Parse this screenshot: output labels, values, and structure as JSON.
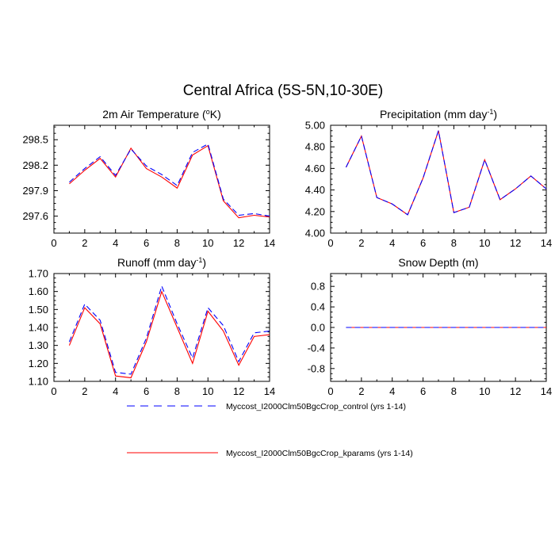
{
  "title": "Central Africa (5S-5N,10-30E)",
  "colors": {
    "control": "#0000ff",
    "kparams": "#ff0000",
    "axis": "#000000"
  },
  "legend": [
    {
      "label": "Myccost_I2000Clm50BgcCrop_control (yrs 1-14)",
      "color": "#0000ff",
      "dash": "dashed"
    },
    {
      "label": "Myccost_I2000Clm50BgcCrop_kparams (yrs 1-14)",
      "color": "#ff0000",
      "dash": "solid"
    }
  ],
  "chart_data": [
    {
      "type": "line",
      "title": "2m Air Temperature (",
      "title_sup": "o",
      "title_tail": "K)",
      "xlim": [
        0,
        14
      ],
      "ylim": [
        297.4,
        298.67
      ],
      "xticks": [
        0,
        2,
        4,
        6,
        8,
        10,
        12,
        14
      ],
      "yticks": [
        297.6,
        297.9,
        298.2,
        298.5
      ],
      "ytick_labels": [
        "297.6",
        "297.9",
        "298.2",
        "298.5"
      ],
      "x": [
        1,
        2,
        3,
        4,
        5,
        6,
        7,
        8,
        9,
        10,
        11,
        12,
        13,
        14
      ],
      "series": [
        {
          "name": "Myccost_I2000Clm50BgcCrop_control (yrs 1-14)",
          "values": [
            298.0,
            298.16,
            298.3,
            298.08,
            298.39,
            298.19,
            298.09,
            297.96,
            298.35,
            298.45,
            297.8,
            297.61,
            297.63,
            297.6
          ]
        },
        {
          "name": "Myccost_I2000Clm50BgcCrop_kparams (yrs 1-14)",
          "values": [
            297.98,
            298.14,
            298.28,
            298.06,
            298.4,
            298.16,
            298.06,
            297.93,
            298.32,
            298.43,
            297.78,
            297.58,
            297.61,
            297.59
          ]
        }
      ]
    },
    {
      "type": "line",
      "title": "Precipitation (mm day",
      "title_sup": "-1",
      "title_tail": ")",
      "xlim": [
        0,
        14
      ],
      "ylim": [
        4.0,
        5.0
      ],
      "xticks": [
        0,
        2,
        4,
        6,
        8,
        10,
        12,
        14
      ],
      "yticks": [
        4.0,
        4.2,
        4.4,
        4.6,
        4.8,
        5.0
      ],
      "ytick_labels": [
        "4.00",
        "4.20",
        "4.40",
        "4.60",
        "4.80",
        "5.00"
      ],
      "x": [
        1,
        2,
        3,
        4,
        5,
        6,
        7,
        8,
        9,
        10,
        11,
        12,
        13,
        14
      ],
      "series": [
        {
          "name": "Myccost_I2000Clm50BgcCrop_control (yrs 1-14)",
          "values": [
            4.61,
            4.9,
            4.33,
            4.27,
            4.17,
            4.51,
            4.95,
            4.19,
            4.24,
            4.68,
            4.31,
            4.41,
            4.53,
            4.41
          ]
        },
        {
          "name": "Myccost_I2000Clm50BgcCrop_kparams (yrs 1-14)",
          "values": [
            4.61,
            4.9,
            4.33,
            4.27,
            4.17,
            4.51,
            4.95,
            4.19,
            4.24,
            4.68,
            4.31,
            4.41,
            4.53,
            4.41
          ]
        }
      ]
    },
    {
      "type": "line",
      "title": "Runoff (mm day",
      "title_sup": "-1",
      "title_tail": ")",
      "xlim": [
        0,
        14
      ],
      "ylim": [
        1.1,
        1.7
      ],
      "xticks": [
        0,
        2,
        4,
        6,
        8,
        10,
        12,
        14
      ],
      "yticks": [
        1.1,
        1.2,
        1.3,
        1.4,
        1.5,
        1.6,
        1.7
      ],
      "ytick_labels": [
        "1.10",
        "1.20",
        "1.30",
        "1.40",
        "1.50",
        "1.60",
        "1.70"
      ],
      "x": [
        1,
        2,
        3,
        4,
        5,
        6,
        7,
        8,
        9,
        10,
        11,
        12,
        13,
        14
      ],
      "series": [
        {
          "name": "Myccost_I2000Clm50BgcCrop_control (yrs 1-14)",
          "values": [
            1.32,
            1.53,
            1.44,
            1.15,
            1.14,
            1.34,
            1.63,
            1.42,
            1.23,
            1.51,
            1.41,
            1.21,
            1.37,
            1.38
          ]
        },
        {
          "name": "Myccost_I2000Clm50BgcCrop_kparams (yrs 1-14)",
          "values": [
            1.3,
            1.51,
            1.42,
            1.13,
            1.12,
            1.32,
            1.6,
            1.4,
            1.2,
            1.49,
            1.38,
            1.19,
            1.35,
            1.36
          ]
        }
      ]
    },
    {
      "type": "line",
      "title": "Snow Depth (m)",
      "title_sup": "",
      "title_tail": "",
      "xlim": [
        0,
        14
      ],
      "ylim": [
        -1.05,
        1.05
      ],
      "xticks": [
        0,
        2,
        4,
        6,
        8,
        10,
        12,
        14
      ],
      "yticks": [
        -0.8,
        -0.4,
        0.0,
        0.4,
        0.8
      ],
      "ytick_labels": [
        "-0.8",
        "-0.4",
        "0.0",
        "0.4",
        "0.8"
      ],
      "x": [
        1,
        2,
        3,
        4,
        5,
        6,
        7,
        8,
        9,
        10,
        11,
        12,
        13,
        14
      ],
      "series": [
        {
          "name": "Myccost_I2000Clm50BgcCrop_control (yrs 1-14)",
          "values": [
            0,
            0,
            0,
            0,
            0,
            0,
            0,
            0,
            0,
            0,
            0,
            0,
            0,
            0
          ]
        },
        {
          "name": "Myccost_I2000Clm50BgcCrop_kparams (yrs 1-14)",
          "values": [
            0,
            0,
            0,
            0,
            0,
            0,
            0,
            0,
            0,
            0,
            0,
            0,
            0,
            0
          ]
        }
      ]
    }
  ]
}
